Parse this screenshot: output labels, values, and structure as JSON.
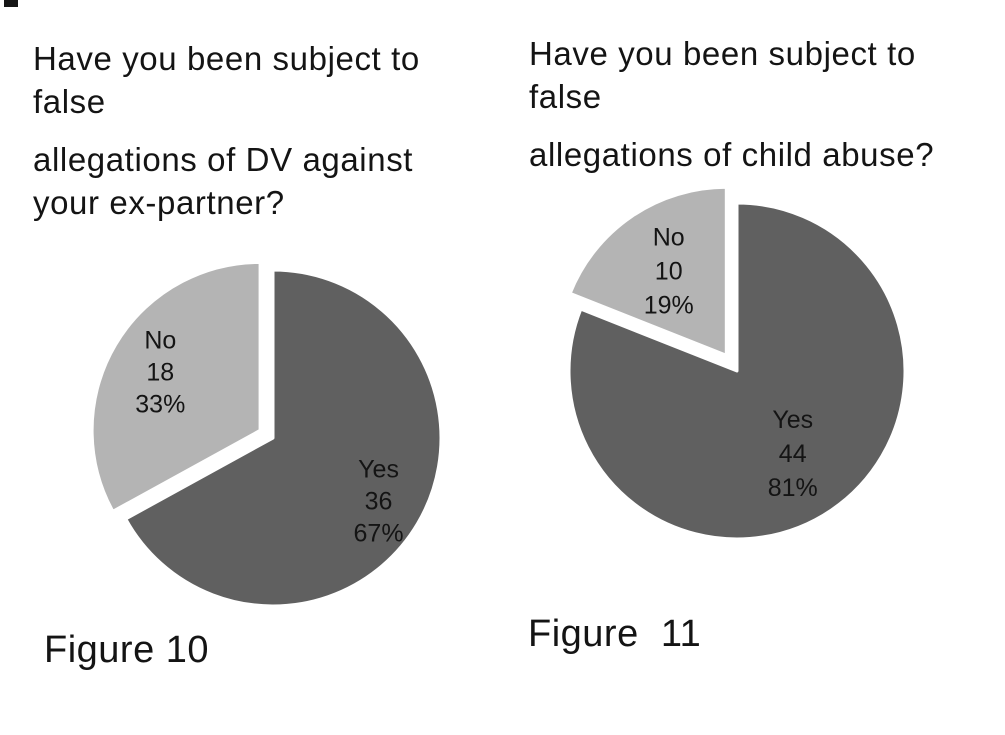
{
  "page": {
    "background": "#ffffff",
    "text_color": "#141414"
  },
  "chart_data": [
    {
      "type": "pie",
      "title": "Have you been subject to false allegations of DV against your ex-partner?",
      "title_lines": [
        "Have you been subject to",
        "false",
        "allegations of DV against",
        "your ex-partner?"
      ],
      "caption": "Figure 10",
      "legend": "none",
      "slices": [
        {
          "label": "Yes",
          "value": 36,
          "pct": 67,
          "color": "#606060",
          "exploded": false,
          "label_r": 0.73
        },
        {
          "label": "No",
          "value": 18,
          "pct": 33,
          "color": "#b4b4b4",
          "exploded": true,
          "label_r": 0.69
        }
      ],
      "layout": {
        "radius": 168,
        "explode": 15,
        "start_angle_deg": 0,
        "direction": "clockwise",
        "stroke": "#ffffff",
        "stroke_width": 3,
        "label_line_height": 32
      }
    },
    {
      "type": "pie",
      "title": "Have you been subject to false allegations of child abuse?",
      "title_lines": [
        "Have you been subject to",
        "false",
        "allegations of child abuse?"
      ],
      "caption": "Figure  11",
      "legend": "none",
      "slices": [
        {
          "label": "Yes",
          "value": 44,
          "pct": 81,
          "color": "#606060",
          "exploded": false,
          "label_r": 0.59
        },
        {
          "label": "No",
          "value": 10,
          "pct": 19,
          "color": "#b4b4b4",
          "exploded": true,
          "label_r": 0.61
        }
      ],
      "layout": {
        "radius": 168,
        "explode": 19,
        "start_angle_deg": 0,
        "direction": "clockwise",
        "stroke": "#ffffff",
        "stroke_width": 3,
        "label_line_height": 34
      }
    }
  ]
}
